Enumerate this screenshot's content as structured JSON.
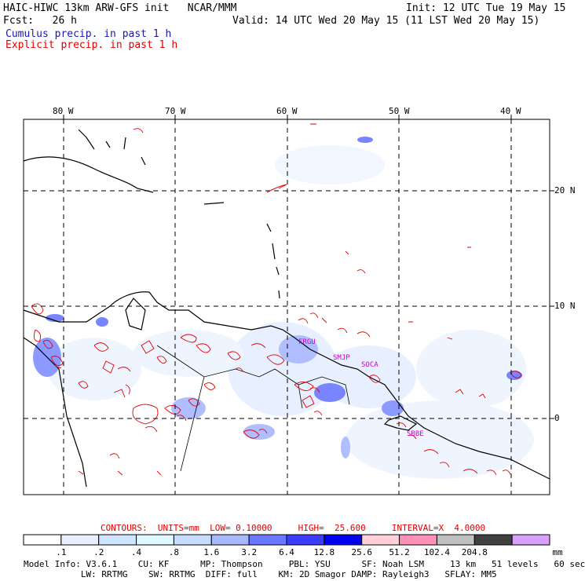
{
  "header": {
    "title_left": "HAIC-HIWC 13km ARW-GFS init   NCAR/MMM",
    "fcst": "Fcst:   26 h",
    "init": "Init: 12 UTC Tue 19 May 15",
    "valid": "Valid: 14 UTC Wed 20 May 15 (11 LST Wed 20 May 15)",
    "cumulus": "Cumulus precip. in past 1 h",
    "explicit": "Explicit precip. in past 1 h"
  },
  "axes": {
    "lon_labels": [
      "80 W",
      "70 W",
      "60 W",
      "50 W",
      "40 W"
    ],
    "lat_labels": [
      "20 N",
      "10 N",
      "0"
    ]
  },
  "regions": [
    "FRGU",
    "SMJP",
    "SOCA",
    "SBBE"
  ],
  "contours": {
    "text": "CONTOURS:  UNITS=mm  LOW= 0.10000     HIGH=  25.600     INTERVAL=X  4.0000"
  },
  "colorbar": {
    "labels": [
      ".1",
      ".2",
      ".4",
      ".8",
      "1.6",
      "3.2",
      "6.4",
      "12.8",
      "25.6",
      "51.2",
      "102.4",
      "204.8"
    ],
    "unit": "mm",
    "colors": [
      "#ffffff",
      "#e8f0ff",
      "#d0e4ff",
      "#e0f8ff",
      "#c8dcff",
      "#a8b8ff",
      "#6a78ff",
      "#3c3cff",
      "#0000ee",
      "#ffd0d8",
      "#ff90b8",
      "#c0c0c0",
      "#404040",
      "#d8a0ff"
    ]
  },
  "model_info": {
    "line1": "Model Info: V3.6.1    CU: KF      MP: Thompson     PBL: YSU      SF: Noah LSM     13 km   51 levels   60 sec",
    "line2": "           LW: RRTMG    SW: RRTMG  DIFF: full    KM: 2D Smagor DAMP: Rayleigh3   SFLAY: MM5"
  }
}
